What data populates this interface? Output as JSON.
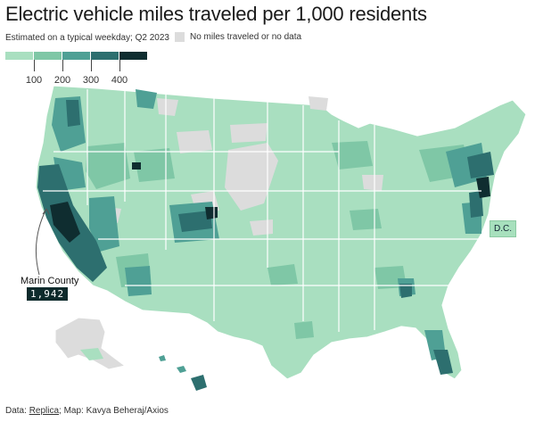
{
  "title": "Electric vehicle miles traveled per 1,000 residents",
  "subtitle": "Estimated on a typical weekday; Q2 2023",
  "no_data_label": "No miles traveled or no data",
  "legend": {
    "ticks": [
      "100",
      "200",
      "300",
      "400"
    ],
    "colors": [
      "#a9dfc0",
      "#7fc7a6",
      "#4fa095",
      "#2d6f6f",
      "#0f2d30"
    ]
  },
  "callout": {
    "name": "Marin County",
    "value": "1,942"
  },
  "dc_label": "D.C.",
  "footer": {
    "prefix": "Data: ",
    "link": "Replica",
    "suffix": "; Map: Kavya Beheraj/Axios"
  },
  "colors": {
    "base": "#a9dfc0",
    "mid": "#7fc7a6",
    "dark": "#2d6f6f",
    "darkest": "#0f2d30",
    "nodata": "#dcdcdc",
    "border": "#ffffff"
  }
}
